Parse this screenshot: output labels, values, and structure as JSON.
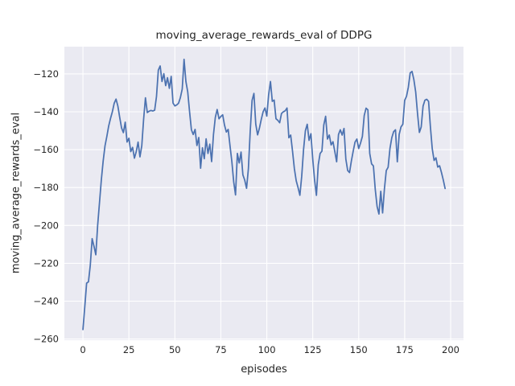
{
  "chart_data": {
    "type": "line",
    "title": "moving_average_rewards_eval of DDPG",
    "xlabel": "episodes",
    "ylabel": "moving_average_rewards_eval",
    "xlim": [
      -10.1,
      207.0
    ],
    "ylim": [
      -260.6,
      -105.6
    ],
    "xticks": [
      0,
      25,
      50,
      75,
      100,
      125,
      150,
      175,
      200
    ],
    "yticks": [
      -120,
      -140,
      -160,
      -180,
      -200,
      -220,
      -240,
      -260
    ],
    "grid": true,
    "legend_position": "none",
    "plot_background": "#eaeaf2",
    "gridline_color": "#ffffff",
    "line_color": "#4c72b0",
    "text_color": "#262626",
    "series": [
      {
        "name": "moving_average_rewards_eval",
        "x_start": 0,
        "x_step": 1,
        "values": [
          -255,
          -243,
          -230.5,
          -229.8,
          -221,
          -207,
          -211,
          -215.5,
          -200,
          -188,
          -176,
          -166,
          -158,
          -153,
          -147.5,
          -143.5,
          -140,
          -135.5,
          -133.3,
          -137,
          -143,
          -148.5,
          -151,
          -145.5,
          -156,
          -154,
          -161,
          -158.8,
          -164.5,
          -161,
          -156,
          -163.8,
          -158,
          -144,
          -132.6,
          -140.4,
          -139.7,
          -139.3,
          -139.6,
          -139.2,
          -132,
          -118,
          -115.8,
          -124,
          -119.9,
          -126.2,
          -122,
          -127.6,
          -121.3,
          -135.4,
          -136.9,
          -136.4,
          -135.5,
          -132.5,
          -128,
          -112.3,
          -124,
          -129.5,
          -140,
          -149.5,
          -152,
          -149.3,
          -157.8,
          -153.6,
          -169.8,
          -159,
          -164.8,
          -154.3,
          -162,
          -157.1,
          -166.3,
          -152,
          -143,
          -138.8,
          -143.7,
          -142.5,
          -141.6,
          -147,
          -150.7,
          -149.3,
          -158,
          -166.3,
          -177,
          -183.9,
          -162,
          -167,
          -161.3,
          -173.3,
          -176.1,
          -180.4,
          -170,
          -150,
          -134,
          -130.3,
          -146.5,
          -152.2,
          -148.6,
          -144,
          -140,
          -138,
          -142.3,
          -131,
          -124,
          -134.5,
          -133.8,
          -143.7,
          -144.5,
          -145.8,
          -140.9,
          -140,
          -139.5,
          -138,
          -153.7,
          -152.3,
          -160.8,
          -170,
          -176.4,
          -180,
          -184.1,
          -174,
          -160,
          -150,
          -146.6,
          -155.1,
          -151.6,
          -165,
          -176,
          -184.1,
          -168,
          -162,
          -160.8,
          -147,
          -142.4,
          -154.4,
          -152.3,
          -157.5,
          -155.8,
          -161,
          -166.4,
          -152,
          -149.5,
          -152.3,
          -148.8,
          -165,
          -171,
          -172.1,
          -166,
          -160.8,
          -156,
          -154.4,
          -159.4,
          -156.5,
          -153,
          -142,
          -138.1,
          -139,
          -162,
          -167.5,
          -168.6,
          -181,
          -190,
          -194,
          -182,
          -193.4,
          -180.6,
          -171,
          -169.3,
          -159.4,
          -153.7,
          -150.5,
          -149.5,
          -166.4,
          -152,
          -148,
          -146.6,
          -134,
          -131.8,
          -127,
          -119.5,
          -118.7,
          -123,
          -129.6,
          -141,
          -150.9,
          -148,
          -137,
          -133.9,
          -133.4,
          -134.5,
          -148,
          -159.5,
          -165.7,
          -164.3,
          -169.2,
          -168.5,
          -172,
          -176,
          -180.5
        ]
      }
    ]
  }
}
